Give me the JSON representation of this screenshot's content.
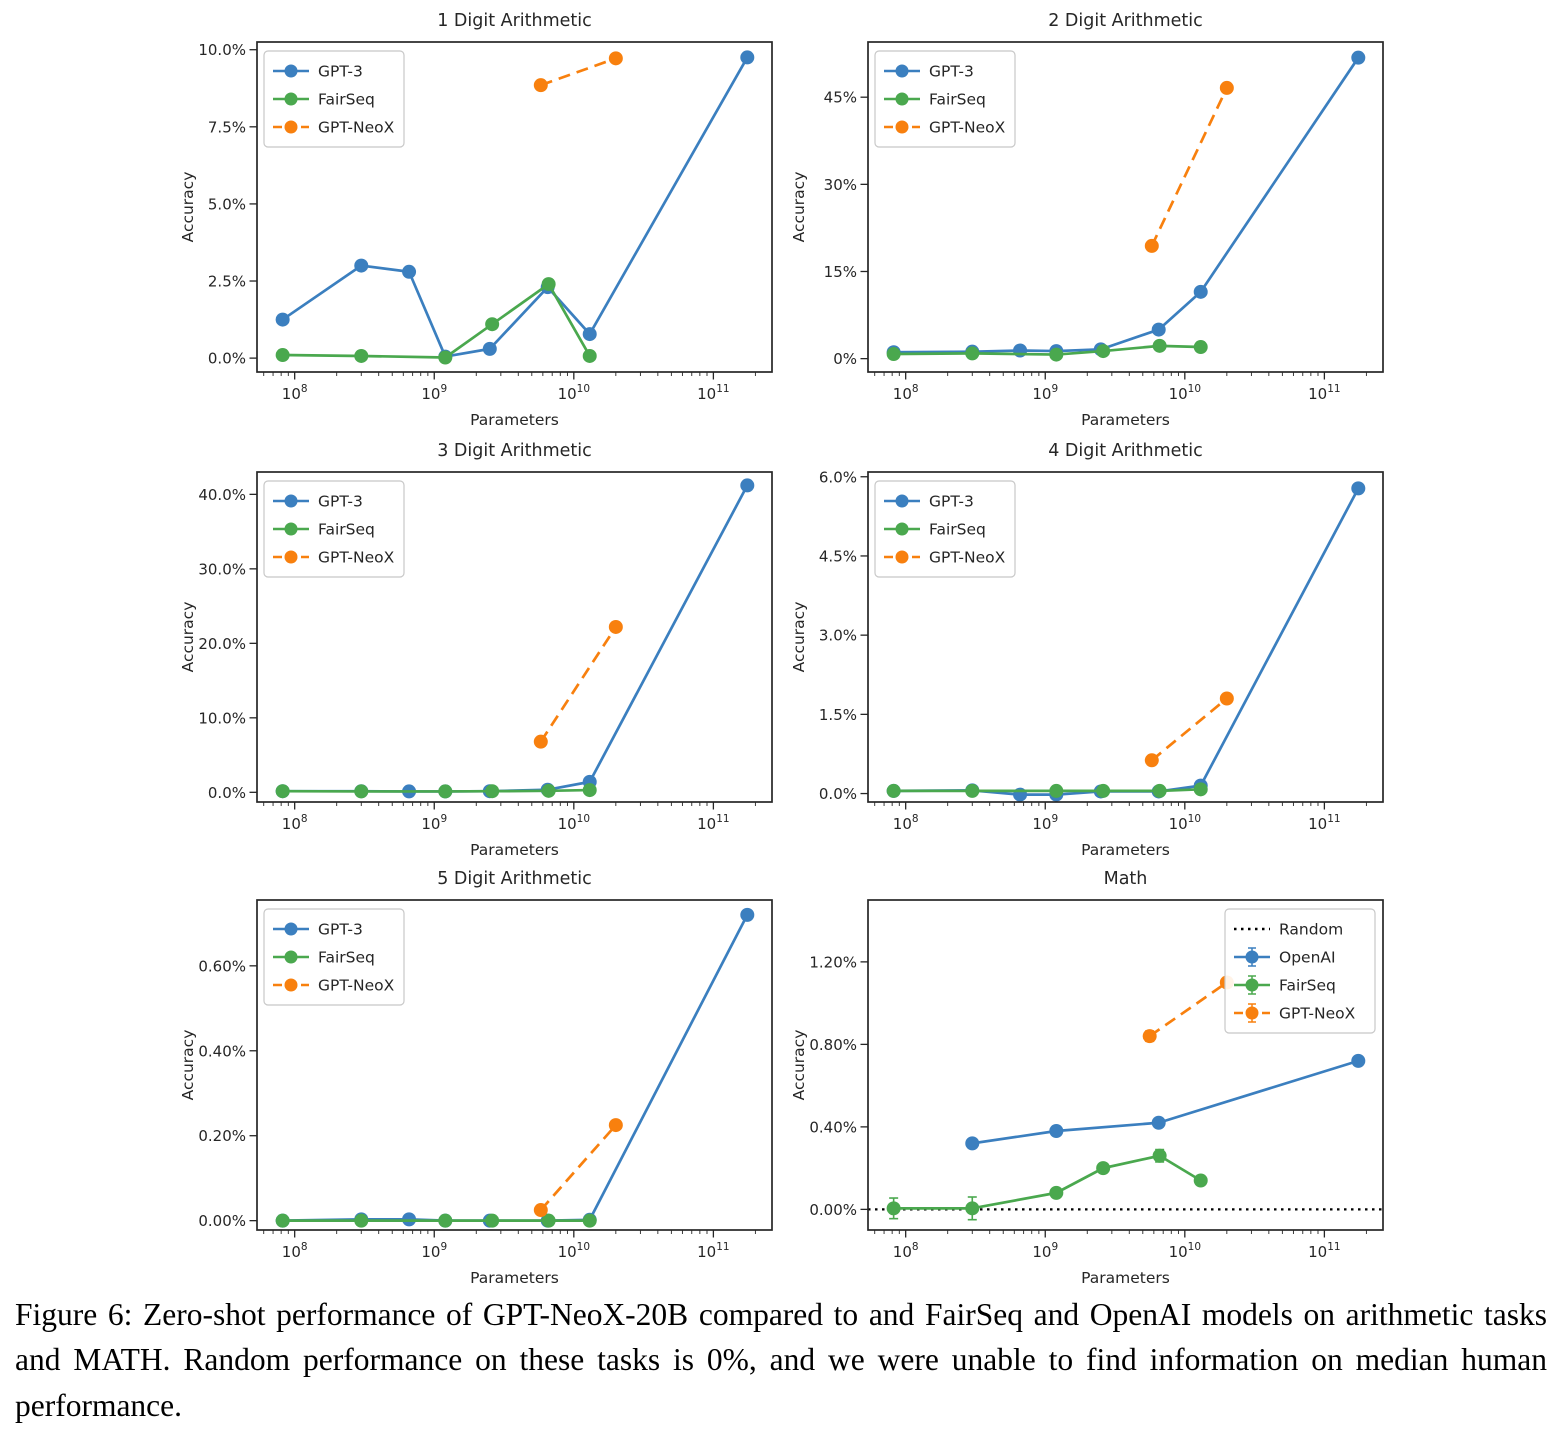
{
  "figure": {
    "caption": "Figure 6: Zero-shot performance of GPT-NeoX-20B compared to and FairSeq and OpenAI models on arithmetic tasks and MATH. Random performance on these tasks is 0%, and we were unable to find information on median human performance."
  },
  "colors": {
    "blue": "#3b7fbf",
    "green": "#4aa84e",
    "orange": "#f8800e",
    "black": "#000000",
    "axis": "#262626",
    "legend_border": "#c8c8c8"
  },
  "chart_data": [
    {
      "slug": "1-digit-arithmetic",
      "type": "line",
      "title": "1 Digit Arithmetic",
      "xlabel": "Parameters",
      "ylabel": "Accuracy",
      "xscale": "log",
      "xlim": [
        7.73,
        11.42
      ],
      "ylim": [
        -0.45,
        10.25
      ],
      "xticks": [
        8,
        9,
        10,
        11
      ],
      "yticks": [
        {
          "v": 0,
          "label": "0.0%"
        },
        {
          "v": 2.5,
          "label": "2.5%"
        },
        {
          "v": 5,
          "label": "5.0%"
        },
        {
          "v": 7.5,
          "label": "7.5%"
        },
        {
          "v": 10,
          "label": "10.0%"
        }
      ],
      "legend": {
        "pos": "nw",
        "errorbar": false,
        "items": [
          {
            "label": "GPT-3",
            "color": "blue",
            "dash": "solid",
            "marker": true
          },
          {
            "label": "FairSeq",
            "color": "green",
            "dash": "solid",
            "marker": true
          },
          {
            "label": "GPT-NeoX",
            "color": "orange",
            "dash": "dashed",
            "marker": true
          }
        ]
      },
      "series": [
        {
          "name": "GPT-3",
          "color": "blue",
          "dash": "solid",
          "x": [
            82000000.0,
            300000000.0,
            660000000.0,
            1200000000.0,
            2500000000.0,
            6500000000.0,
            13000000000.0,
            175000000000.0
          ],
          "y": [
            1.25,
            3.0,
            2.8,
            0.05,
            0.3,
            2.3,
            0.78,
            9.75
          ]
        },
        {
          "name": "FairSeq",
          "color": "green",
          "dash": "solid",
          "x": [
            82000000.0,
            300000000.0,
            1200000000.0,
            2600000000.0,
            6600000000.0,
            13000000000.0
          ],
          "y": [
            0.1,
            0.07,
            0.02,
            1.1,
            2.4,
            0.07
          ]
        },
        {
          "name": "GPT-NeoX",
          "color": "orange",
          "dash": "dashed",
          "x": [
            5800000000.0,
            20000000000.0
          ],
          "y": [
            8.85,
            9.72
          ]
        }
      ]
    },
    {
      "slug": "2-digit-arithmetic",
      "type": "line",
      "title": "2 Digit Arithmetic",
      "xlabel": "Parameters",
      "ylabel": "Accuracy",
      "xscale": "log",
      "xlim": [
        7.73,
        11.42
      ],
      "ylim": [
        -2.3,
        54.5
      ],
      "xticks": [
        8,
        9,
        10,
        11
      ],
      "yticks": [
        {
          "v": 0,
          "label": "0%"
        },
        {
          "v": 15,
          "label": "15%"
        },
        {
          "v": 30,
          "label": "30%"
        },
        {
          "v": 45,
          "label": "45%"
        }
      ],
      "legend": {
        "pos": "nw",
        "errorbar": false,
        "items": [
          {
            "label": "GPT-3",
            "color": "blue",
            "dash": "solid",
            "marker": true
          },
          {
            "label": "FairSeq",
            "color": "green",
            "dash": "solid",
            "marker": true
          },
          {
            "label": "GPT-NeoX",
            "color": "orange",
            "dash": "dashed",
            "marker": true
          }
        ]
      },
      "series": [
        {
          "name": "GPT-3",
          "color": "blue",
          "dash": "solid",
          "x": [
            82000000.0,
            300000000.0,
            660000000.0,
            1200000000.0,
            2500000000.0,
            6500000000.0,
            13000000000.0,
            175000000000.0
          ],
          "y": [
            1.1,
            1.2,
            1.4,
            1.3,
            1.6,
            5.0,
            11.5,
            51.8
          ]
        },
        {
          "name": "FairSeq",
          "color": "green",
          "dash": "solid",
          "x": [
            82000000.0,
            300000000.0,
            1200000000.0,
            2600000000.0,
            6600000000.0,
            13000000000.0
          ],
          "y": [
            0.8,
            0.9,
            0.7,
            1.3,
            2.2,
            2.0
          ]
        },
        {
          "name": "GPT-NeoX",
          "color": "orange",
          "dash": "dashed",
          "x": [
            5800000000.0,
            20000000000.0
          ],
          "y": [
            19.4,
            46.6
          ]
        }
      ]
    },
    {
      "slug": "3-digit-arithmetic",
      "type": "line",
      "title": "3 Digit Arithmetic",
      "xlabel": "Parameters",
      "ylabel": "Accuracy",
      "xscale": "log",
      "xlim": [
        7.73,
        11.42
      ],
      "ylim": [
        -1.3,
        43.0
      ],
      "xticks": [
        8,
        9,
        10,
        11
      ],
      "yticks": [
        {
          "v": 0,
          "label": "0.0%"
        },
        {
          "v": 10,
          "label": "10.0%"
        },
        {
          "v": 20,
          "label": "20.0%"
        },
        {
          "v": 30,
          "label": "30.0%"
        },
        {
          "v": 40,
          "label": "40.0%"
        }
      ],
      "legend": {
        "pos": "nw",
        "errorbar": false,
        "items": [
          {
            "label": "GPT-3",
            "color": "blue",
            "dash": "solid",
            "marker": true
          },
          {
            "label": "FairSeq",
            "color": "green",
            "dash": "solid",
            "marker": true
          },
          {
            "label": "GPT-NeoX",
            "color": "orange",
            "dash": "dashed",
            "marker": true
          }
        ]
      },
      "series": [
        {
          "name": "GPT-3",
          "color": "blue",
          "dash": "solid",
          "x": [
            82000000.0,
            300000000.0,
            660000000.0,
            1200000000.0,
            2500000000.0,
            6500000000.0,
            13000000000.0,
            175000000000.0
          ],
          "y": [
            0.15,
            0.15,
            0.12,
            0.12,
            0.15,
            0.35,
            1.4,
            41.2
          ]
        },
        {
          "name": "FairSeq",
          "color": "green",
          "dash": "solid",
          "x": [
            82000000.0,
            300000000.0,
            1200000000.0,
            2600000000.0,
            6600000000.0,
            13000000000.0
          ],
          "y": [
            0.15,
            0.12,
            0.12,
            0.15,
            0.2,
            0.3
          ]
        },
        {
          "name": "GPT-NeoX",
          "color": "orange",
          "dash": "dashed",
          "x": [
            5800000000.0,
            20000000000.0
          ],
          "y": [
            6.8,
            22.2
          ]
        }
      ]
    },
    {
      "slug": "4-digit-arithmetic",
      "type": "line",
      "title": "4 Digit Arithmetic",
      "xlabel": "Parameters",
      "ylabel": "Accuracy",
      "xscale": "log",
      "xlim": [
        7.73,
        11.42
      ],
      "ylim": [
        -0.16,
        6.09
      ],
      "xticks": [
        8,
        9,
        10,
        11
      ],
      "yticks": [
        {
          "v": 0,
          "label": "0.0%"
        },
        {
          "v": 1.5,
          "label": "1.5%"
        },
        {
          "v": 3.0,
          "label": "3.0%"
        },
        {
          "v": 4.5,
          "label": "4.5%"
        },
        {
          "v": 6.0,
          "label": "6.0%"
        }
      ],
      "legend": {
        "pos": "nw",
        "errorbar": false,
        "items": [
          {
            "label": "GPT-3",
            "color": "blue",
            "dash": "solid",
            "marker": true
          },
          {
            "label": "FairSeq",
            "color": "green",
            "dash": "solid",
            "marker": true
          },
          {
            "label": "GPT-NeoX",
            "color": "orange",
            "dash": "dashed",
            "marker": true
          }
        ]
      },
      "series": [
        {
          "name": "GPT-3",
          "color": "blue",
          "dash": "solid",
          "x": [
            82000000.0,
            300000000.0,
            660000000.0,
            1200000000.0,
            2500000000.0,
            6500000000.0,
            13000000000.0,
            175000000000.0
          ],
          "y": [
            0.05,
            0.06,
            -0.02,
            -0.02,
            0.04,
            0.04,
            0.15,
            5.78
          ]
        },
        {
          "name": "FairSeq",
          "color": "green",
          "dash": "solid",
          "x": [
            82000000.0,
            300000000.0,
            1200000000.0,
            2600000000.0,
            6600000000.0,
            13000000000.0
          ],
          "y": [
            0.05,
            0.05,
            0.05,
            0.05,
            0.05,
            0.08
          ]
        },
        {
          "name": "GPT-NeoX",
          "color": "orange",
          "dash": "dashed",
          "x": [
            5800000000.0,
            20000000000.0
          ],
          "y": [
            0.63,
            1.8
          ]
        }
      ]
    },
    {
      "slug": "5-digit-arithmetic",
      "type": "line",
      "title": "5 Digit Arithmetic",
      "xlabel": "Parameters",
      "ylabel": "Accuracy",
      "xscale": "log",
      "xlim": [
        7.73,
        11.42
      ],
      "ylim": [
        -0.022,
        0.755
      ],
      "xticks": [
        8,
        9,
        10,
        11
      ],
      "yticks": [
        {
          "v": 0,
          "label": "0.00%"
        },
        {
          "v": 0.2,
          "label": "0.20%"
        },
        {
          "v": 0.4,
          "label": "0.40%"
        },
        {
          "v": 0.6,
          "label": "0.60%"
        }
      ],
      "legend": {
        "pos": "nw",
        "errorbar": false,
        "items": [
          {
            "label": "GPT-3",
            "color": "blue",
            "dash": "solid",
            "marker": true
          },
          {
            "label": "FairSeq",
            "color": "green",
            "dash": "solid",
            "marker": true
          },
          {
            "label": "GPT-NeoX",
            "color": "orange",
            "dash": "dashed",
            "marker": true
          }
        ]
      },
      "series": [
        {
          "name": "GPT-3",
          "color": "blue",
          "dash": "solid",
          "x": [
            82000000.0,
            300000000.0,
            660000000.0,
            1200000000.0,
            2500000000.0,
            6500000000.0,
            13000000000.0,
            175000000000.0
          ],
          "y": [
            0.0,
            0.003,
            0.003,
            0.0,
            0.0,
            0.0,
            0.002,
            0.72
          ]
        },
        {
          "name": "FairSeq",
          "color": "green",
          "dash": "solid",
          "x": [
            82000000.0,
            300000000.0,
            1200000000.0,
            2600000000.0,
            6600000000.0,
            13000000000.0
          ],
          "y": [
            0.0,
            0.0,
            0.0,
            0.0,
            0.0,
            0.0
          ]
        },
        {
          "name": "GPT-NeoX",
          "color": "orange",
          "dash": "dashed",
          "x": [
            5800000000.0,
            20000000000.0
          ],
          "y": [
            0.025,
            0.225
          ]
        }
      ]
    },
    {
      "slug": "math",
      "type": "line",
      "title": "Math",
      "xlabel": "Parameters",
      "ylabel": "Accuracy",
      "xscale": "log",
      "xlim": [
        7.73,
        11.42
      ],
      "ylim": [
        -0.1,
        1.5
      ],
      "xticks": [
        8,
        9,
        10,
        11
      ],
      "yticks": [
        {
          "v": 0,
          "label": "0.00%"
        },
        {
          "v": 0.4,
          "label": "0.40%"
        },
        {
          "v": 0.8,
          "label": "0.80%"
        },
        {
          "v": 1.2,
          "label": "1.20%"
        }
      ],
      "baseline": {
        "label": "Random",
        "y": 0,
        "color": "black"
      },
      "legend": {
        "pos": "ne",
        "errorbar": true,
        "items": [
          {
            "label": "Random",
            "color": "black",
            "dash": "dotted",
            "marker": false
          },
          {
            "label": "OpenAI",
            "color": "blue",
            "dash": "solid",
            "marker": true,
            "errorbar": true
          },
          {
            "label": "FairSeq",
            "color": "green",
            "dash": "solid",
            "marker": true,
            "errorbar": true
          },
          {
            "label": "GPT-NeoX",
            "color": "orange",
            "dash": "dashed",
            "marker": true,
            "errorbar": true
          }
        ]
      },
      "series": [
        {
          "name": "OpenAI",
          "color": "blue",
          "dash": "solid",
          "x": [
            300000000.0,
            1200000000.0,
            6500000000.0,
            175000000000.0
          ],
          "y": [
            0.32,
            0.38,
            0.42,
            0.72
          ],
          "err": [
            0.015,
            0.015,
            0.02,
            0.015
          ]
        },
        {
          "name": "FairSeq",
          "color": "green",
          "dash": "solid",
          "x": [
            82000000.0,
            300000000.0,
            1200000000.0,
            2600000000.0,
            6600000000.0,
            13000000000.0
          ],
          "y": [
            0.005,
            0.005,
            0.08,
            0.2,
            0.26,
            0.14
          ],
          "err": [
            0.05,
            0.055,
            0.02,
            0.02,
            0.03,
            0.02
          ]
        },
        {
          "name": "GPT-NeoX",
          "color": "orange",
          "dash": "dashed",
          "x": [
            5600000000.0,
            20000000000.0
          ],
          "y": [
            0.84,
            1.1
          ],
          "err": [
            0.025,
            0.02
          ]
        }
      ]
    }
  ]
}
